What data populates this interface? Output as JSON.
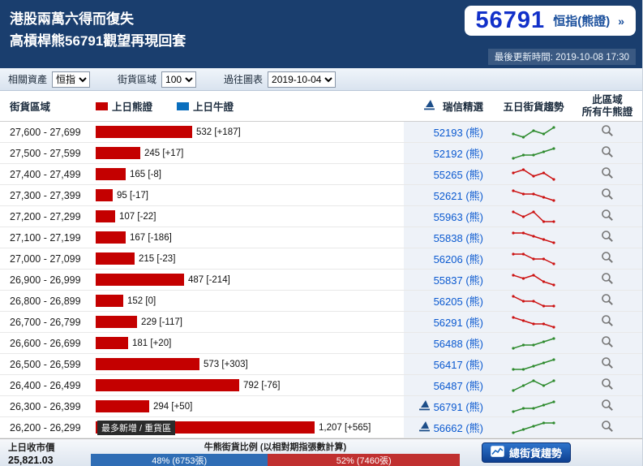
{
  "colors": {
    "header_bg": "#1a3e6e",
    "bear_bar": "#c40000",
    "bull": "#0a6ebd",
    "code_link": "#0a59d0",
    "trend_up": "#2e8b2e",
    "trend_down": "#cc1111",
    "ratio_bull": "#2f6db5",
    "ratio_bear": "#c03030"
  },
  "icons": {
    "pick_icon": "sail-flag-icon",
    "zoom_icon": "magnifier-icon",
    "button_icon": "line-chart-icon"
  },
  "header": {
    "title_line1": "港股兩萬六得而復失",
    "title_line2": "高槓桿熊56791觀望再現回套",
    "ticker": "56791",
    "ticker_label": "恒指(熊證)",
    "ticker_arrow": "»",
    "updated": "最後更新時間: 2019-10-08 17:30"
  },
  "filters": {
    "asset_label": "相關資產",
    "asset_value": "恒指",
    "range_label": "街貨區域",
    "range_value": "100",
    "chart_label": "過往圖表",
    "chart_value": "2019-10-04"
  },
  "table": {
    "col_range": "街貨區域",
    "legend_bear": "上日熊證",
    "legend_bull": "上日牛證",
    "col_pick": "瑞信精選",
    "col_trend": "五日街貨趨勢",
    "col_all_line1": "此區域",
    "col_all_line2": "所有牛熊證",
    "rows": [
      {
        "range": "27,600 - 27,699",
        "value": 532,
        "label": "532 [+187]",
        "code": "52193",
        "kind": "(熊)",
        "flagged": false,
        "trend": {
          "points": [
            3,
            2,
            4,
            3,
            5
          ],
          "dir": "up"
        }
      },
      {
        "range": "27,500 - 27,599",
        "value": 245,
        "label": "245 [+17]",
        "code": "52192",
        "kind": "(熊)",
        "flagged": false,
        "trend": {
          "points": [
            2,
            3,
            3,
            4,
            5
          ],
          "dir": "up"
        }
      },
      {
        "range": "27,400 - 27,499",
        "value": 165,
        "label": "165 [-8]",
        "code": "55265",
        "kind": "(熊)",
        "flagged": false,
        "trend": {
          "points": [
            4,
            5,
            3,
            4,
            2
          ],
          "dir": "down"
        }
      },
      {
        "range": "27,300 - 27,399",
        "value": 95,
        "label": "95 [-17]",
        "code": "52621",
        "kind": "(熊)",
        "flagged": false,
        "trend": {
          "points": [
            5,
            4,
            4,
            3,
            2
          ],
          "dir": "down"
        }
      },
      {
        "range": "27,200 - 27,299",
        "value": 107,
        "label": "107 [-22]",
        "code": "55963",
        "kind": "(熊)",
        "flagged": false,
        "trend": {
          "points": [
            4,
            3,
            4,
            2,
            2
          ],
          "dir": "down"
        }
      },
      {
        "range": "27,100 - 27,199",
        "value": 167,
        "label": "167 [-186]",
        "code": "55838",
        "kind": "(熊)",
        "flagged": false,
        "trend": {
          "points": [
            5,
            5,
            4,
            3,
            2
          ],
          "dir": "down"
        }
      },
      {
        "range": "27,000 - 27,099",
        "value": 215,
        "label": "215 [-23]",
        "code": "56206",
        "kind": "(熊)",
        "flagged": false,
        "trend": {
          "points": [
            4,
            4,
            3,
            3,
            2
          ],
          "dir": "down"
        }
      },
      {
        "range": "26,900 - 26,999",
        "value": 487,
        "label": "487 [-214]",
        "code": "55837",
        "kind": "(熊)",
        "flagged": false,
        "trend": {
          "points": [
            5,
            4,
            5,
            3,
            2
          ],
          "dir": "down"
        }
      },
      {
        "range": "26,800 - 26,899",
        "value": 152,
        "label": "152 [0]",
        "code": "56205",
        "kind": "(熊)",
        "flagged": false,
        "trend": {
          "points": [
            4,
            3,
            3,
            2,
            2
          ],
          "dir": "down"
        }
      },
      {
        "range": "26,700 - 26,799",
        "value": 229,
        "label": "229 [-117]",
        "code": "56291",
        "kind": "(熊)",
        "flagged": false,
        "trend": {
          "points": [
            5,
            4,
            3,
            3,
            2
          ],
          "dir": "down"
        }
      },
      {
        "range": "26,600 - 26,699",
        "value": 181,
        "label": "181 [+20]",
        "code": "56488",
        "kind": "(熊)",
        "flagged": false,
        "trend": {
          "points": [
            2,
            3,
            3,
            4,
            5
          ],
          "dir": "up"
        }
      },
      {
        "range": "26,500 - 26,599",
        "value": 573,
        "label": "573 [+303]",
        "code": "56417",
        "kind": "(熊)",
        "flagged": false,
        "trend": {
          "points": [
            2,
            2,
            3,
            4,
            5
          ],
          "dir": "up"
        }
      },
      {
        "range": "26,400 - 26,499",
        "value": 792,
        "label": "792 [-76]",
        "code": "56487",
        "kind": "(熊)",
        "flagged": false,
        "trend": {
          "points": [
            3,
            4,
            5,
            4,
            5
          ],
          "dir": "up"
        }
      },
      {
        "range": "26,300 - 26,399",
        "value": 294,
        "label": "294 [+50]",
        "code": "56791",
        "kind": "(熊)",
        "flagged": true,
        "trend": {
          "points": [
            2,
            3,
            3,
            4,
            5
          ],
          "dir": "up"
        }
      },
      {
        "range": "26,200 - 26,299",
        "value": 1207,
        "label": "1,207 [+565]",
        "code": "56662",
        "kind": "(熊)",
        "flagged": true,
        "tag": "最多新增 / 重貨區",
        "trend": {
          "points": [
            2,
            3,
            4,
            5,
            5
          ],
          "dir": "up"
        }
      }
    ]
  },
  "footer": {
    "close_label": "上日收市價",
    "close_value": "25,821.03",
    "ratio_title": "牛熊街貨比例 (以相對期指張數計算)",
    "bull_pct": 48,
    "bull_label": "48% (6753張)",
    "bear_pct": 52,
    "bear_label": "52% (7460張)",
    "trend_button": "總街貨趨勢"
  }
}
